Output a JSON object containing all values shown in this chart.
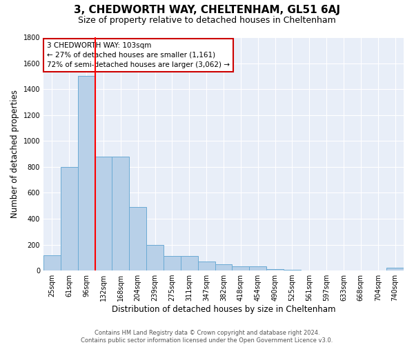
{
  "title": "3, CHEDWORTH WAY, CHELTENHAM, GL51 6AJ",
  "subtitle": "Size of property relative to detached houses in Cheltenham",
  "xlabel": "Distribution of detached houses by size in Cheltenham",
  "ylabel": "Number of detached properties",
  "categories": [
    "25sqm",
    "61sqm",
    "96sqm",
    "132sqm",
    "168sqm",
    "204sqm",
    "239sqm",
    "275sqm",
    "311sqm",
    "347sqm",
    "382sqm",
    "418sqm",
    "454sqm",
    "490sqm",
    "525sqm",
    "561sqm",
    "597sqm",
    "633sqm",
    "668sqm",
    "704sqm",
    "740sqm"
  ],
  "values": [
    120,
    800,
    1500,
    880,
    880,
    490,
    200,
    110,
    110,
    70,
    50,
    35,
    30,
    10,
    8,
    3,
    2,
    1,
    1,
    0,
    20
  ],
  "bar_color": "#b8d0e8",
  "bar_edge_color": "#6aaad4",
  "background_color": "#e8eef8",
  "grid_color": "#ffffff",
  "red_line_x": 2.5,
  "annotation_text": "3 CHEDWORTH WAY: 103sqm\n← 27% of detached houses are smaller (1,161)\n72% of semi-detached houses are larger (3,062) →",
  "annotation_box_color": "#ffffff",
  "annotation_box_edge_color": "#cc0000",
  "ylim": [
    0,
    1800
  ],
  "yticks": [
    0,
    200,
    400,
    600,
    800,
    1000,
    1200,
    1400,
    1600,
    1800
  ],
  "footer_text": "Contains HM Land Registry data © Crown copyright and database right 2024.\nContains public sector information licensed under the Open Government Licence v3.0.",
  "title_fontsize": 11,
  "subtitle_fontsize": 9,
  "xlabel_fontsize": 8.5,
  "ylabel_fontsize": 8.5,
  "tick_fontsize": 7,
  "annotation_fontsize": 7.5
}
